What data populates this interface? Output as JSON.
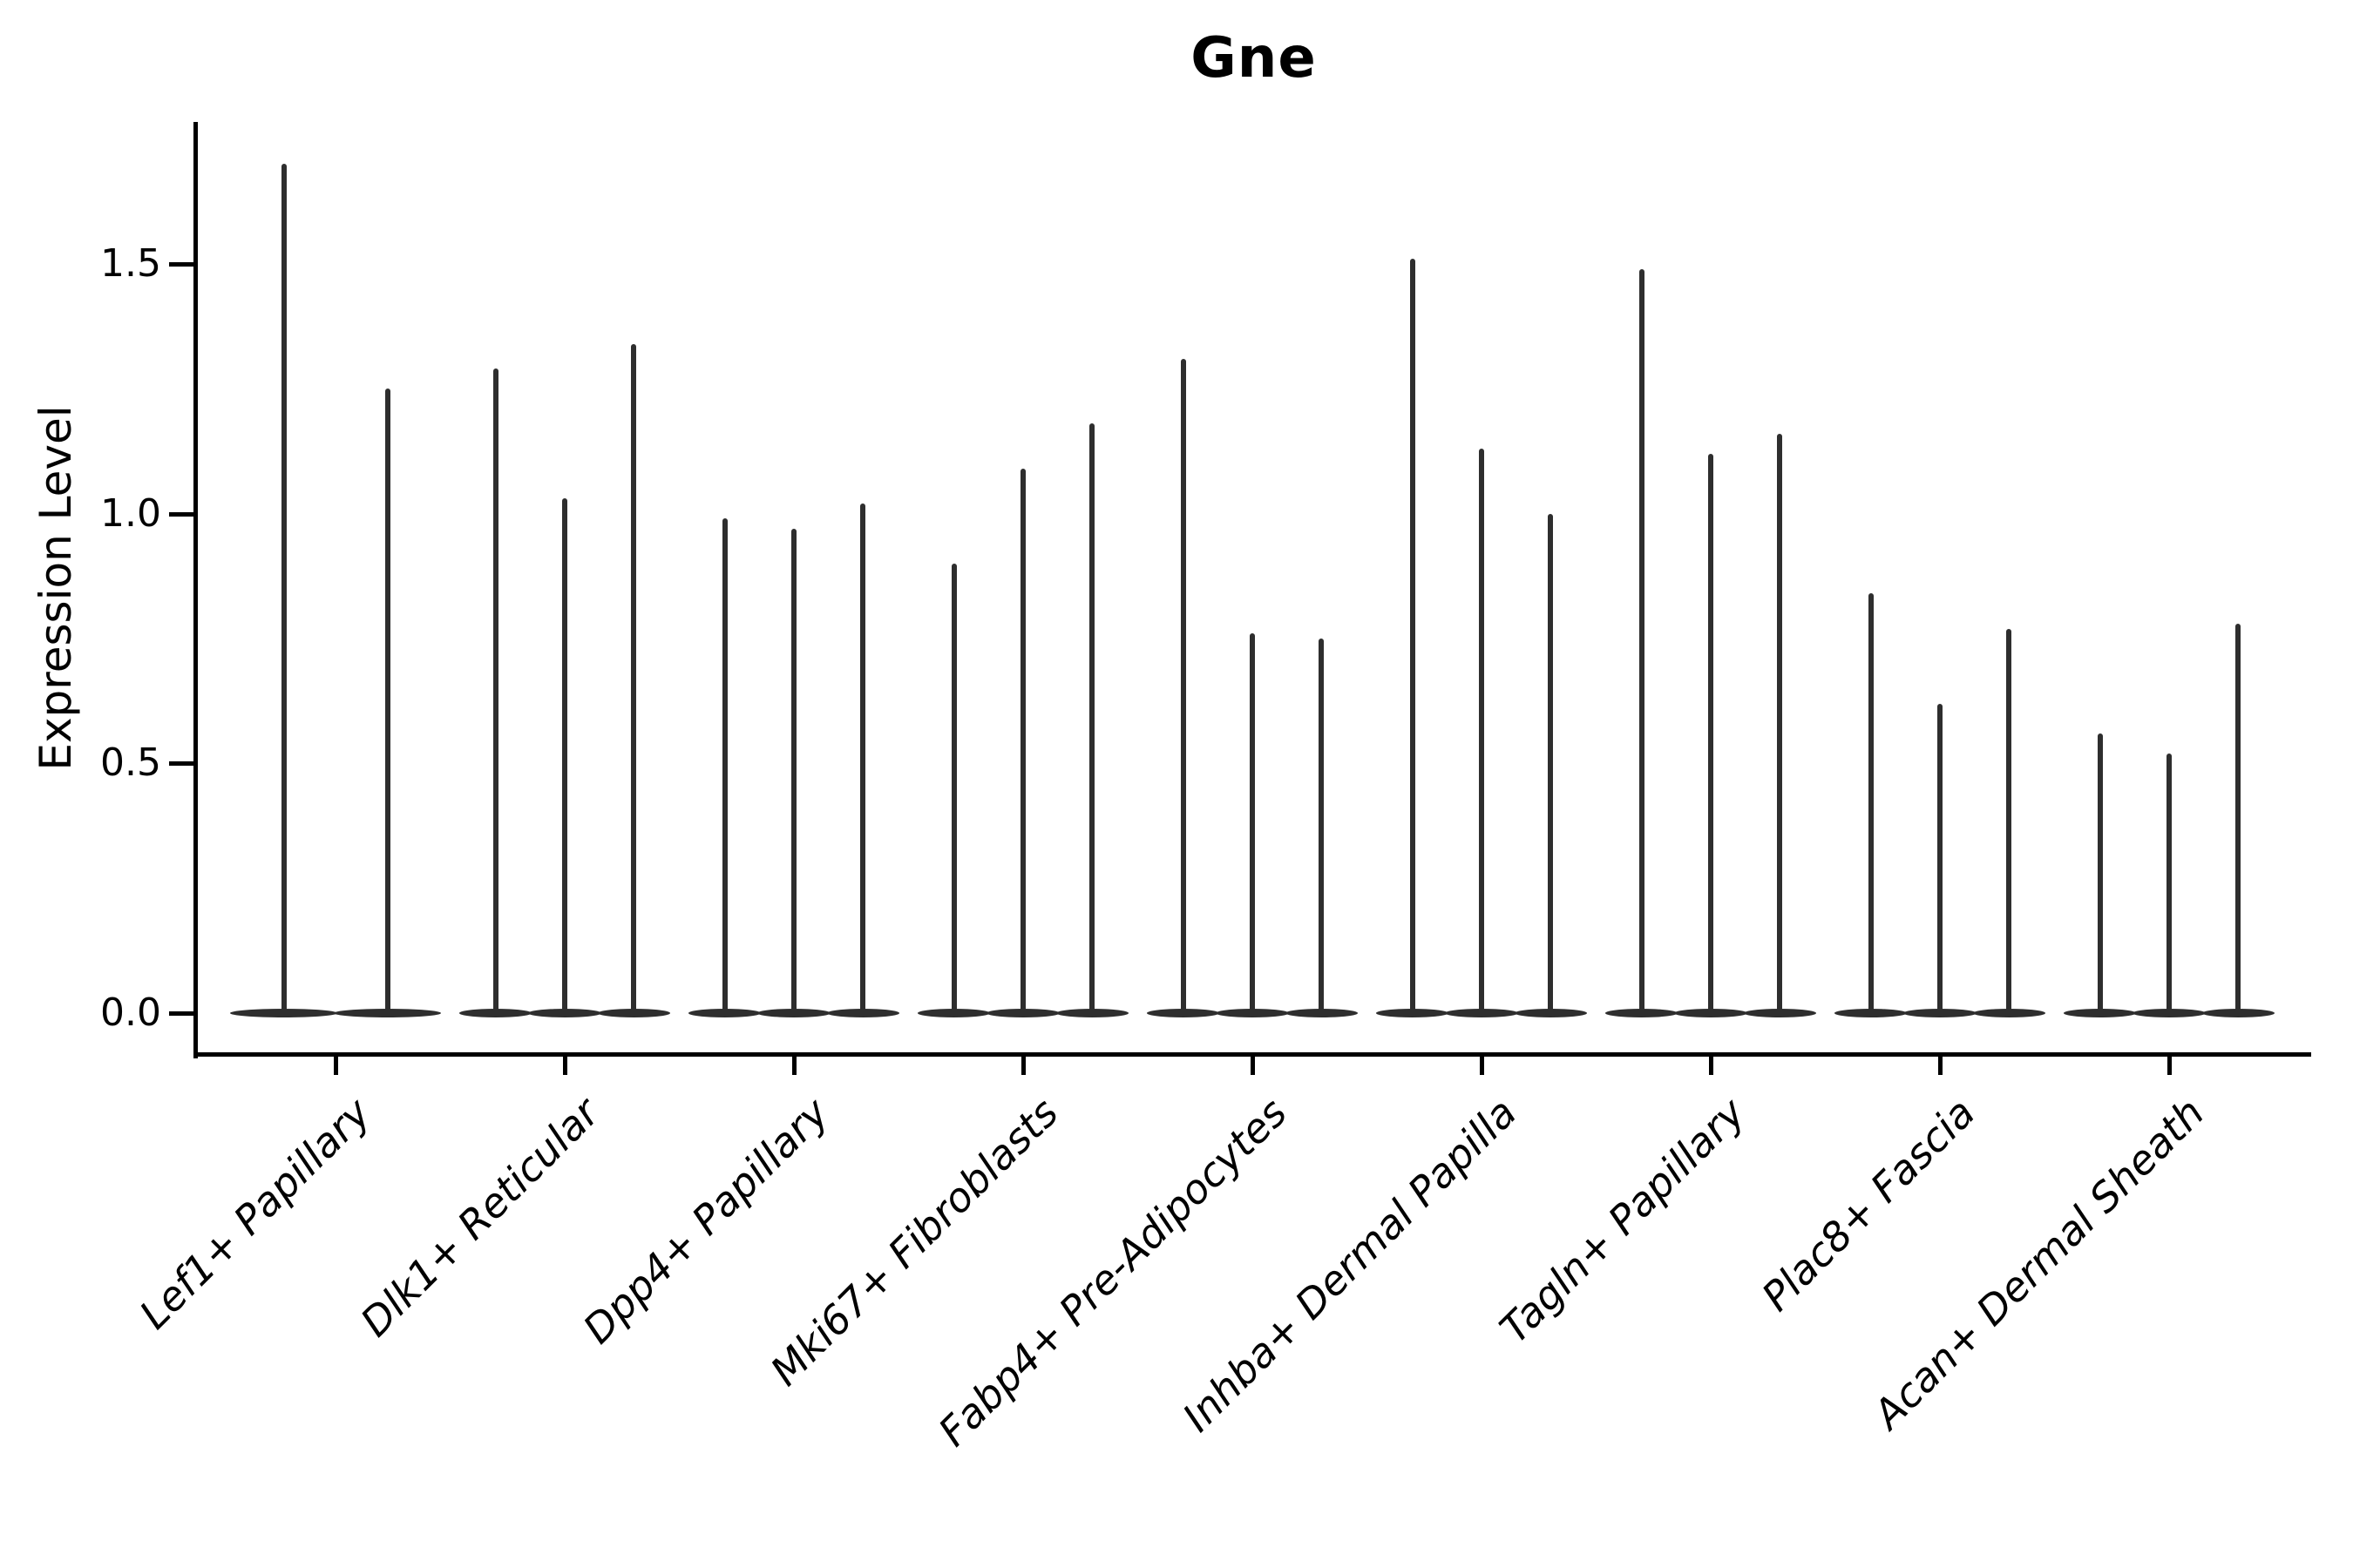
{
  "title": "Gne",
  "colors": {
    "violin": "#2e2e2e",
    "axis": "#000000",
    "text": "#000000",
    "background": "#ffffff"
  },
  "chart_data": {
    "type": "violin",
    "title": "Gne",
    "ylabel": "Expression Level",
    "xlabel": "",
    "grid": false,
    "legend_position": "none",
    "ylim": [
      -0.08,
      1.78
    ],
    "ytick_values": [
      0.0,
      0.5,
      1.0,
      1.5
    ],
    "ytick_labels": [
      "0.0",
      "0.5",
      "1.0",
      "1.5"
    ],
    "categories": [
      "Lef1+ Papillary",
      "Dlk1+ Reticular",
      "Dpp4+ Papillary",
      "Mki67+ Fibroblasts",
      "Fabp4+ Pre-Adipocytes",
      "Inhba+ Dermal Papilla",
      "Tagln+ Papillary",
      "Plac8+ Fascia",
      "Acan+ Dermal Sheath"
    ],
    "groups": [
      {
        "category": "Lef1+ Papillary",
        "violin_peaks": [
          1.7,
          1.25
        ]
      },
      {
        "category": "Dlk1+ Reticular",
        "violin_peaks": [
          1.29,
          1.03,
          1.34
        ]
      },
      {
        "category": "Dpp4+ Papillary",
        "violin_peaks": [
          0.99,
          0.97,
          1.02
        ]
      },
      {
        "category": "Mki67+ Fibroblasts",
        "violin_peaks": [
          0.9,
          1.09,
          1.18
        ]
      },
      {
        "category": "Fabp4+ Pre-Adipocytes",
        "violin_peaks": [
          1.31,
          0.76,
          0.75
        ]
      },
      {
        "category": "Inhba+ Dermal Papilla",
        "violin_peaks": [
          1.51,
          1.13,
          1.0
        ]
      },
      {
        "category": "Tagln+ Papillary",
        "violin_peaks": [
          1.49,
          1.12,
          1.16
        ]
      },
      {
        "category": "Plac8+ Fascia",
        "violin_peaks": [
          0.84,
          0.62,
          0.77
        ]
      },
      {
        "category": "Acan+ Dermal Sheath",
        "violin_peaks": [
          0.56,
          0.52,
          0.78
        ]
      }
    ],
    "violin_shape_note": "each violin is a near-zero-width density: flat disc at 0 plus a thin vertical spike up to its peak value"
  }
}
